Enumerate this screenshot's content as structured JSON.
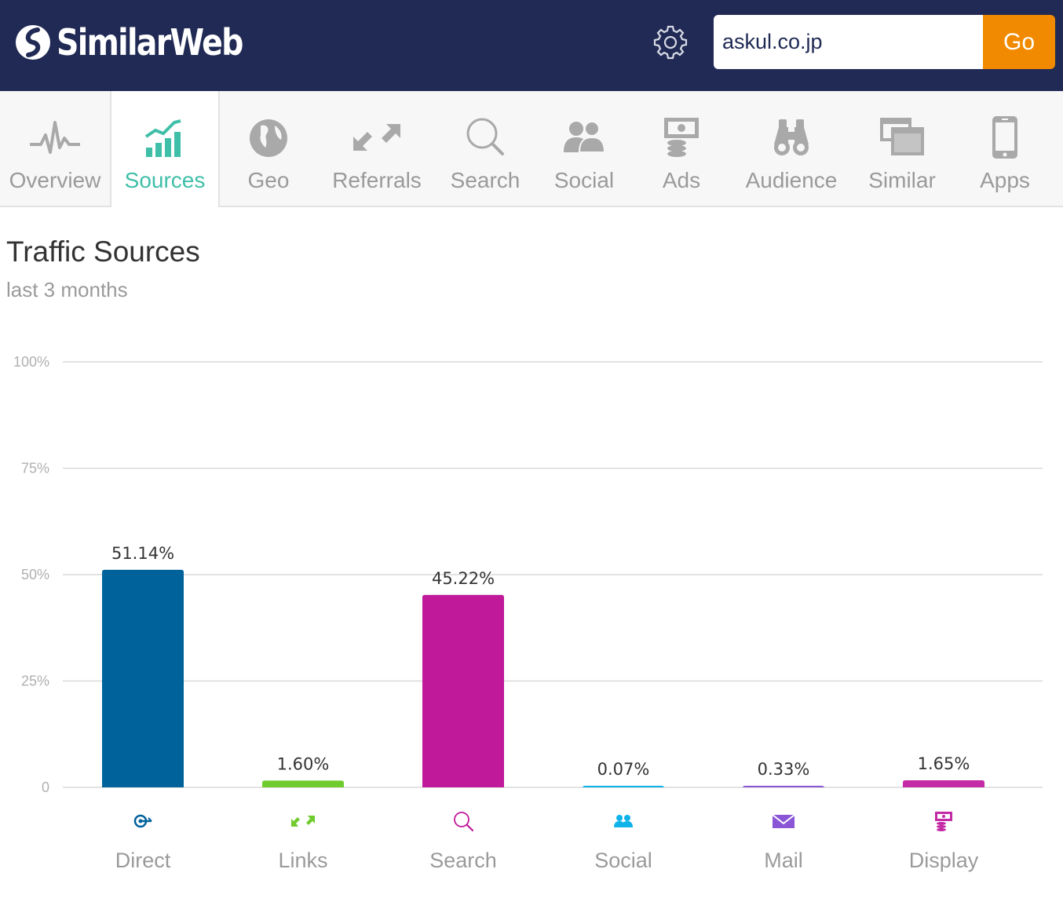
{
  "header": {
    "logo_text": "SimilarWeb",
    "settings_icon": "gear-icon",
    "search_value": "askul.co.jp",
    "go_label": "Go"
  },
  "tabs": [
    {
      "label": "Overview",
      "icon": "pulse-icon",
      "active": false
    },
    {
      "label": "Sources",
      "icon": "growth-chart-icon",
      "active": true
    },
    {
      "label": "Geo",
      "icon": "globe-icon",
      "active": false
    },
    {
      "label": "Referrals",
      "icon": "arrows-icon",
      "active": false
    },
    {
      "label": "Search",
      "icon": "magnifier-icon",
      "active": false
    },
    {
      "label": "Social",
      "icon": "people-icon",
      "active": false
    },
    {
      "label": "Ads",
      "icon": "money-stack-icon",
      "active": false
    },
    {
      "label": "Audience",
      "icon": "binoculars-icon",
      "active": false
    },
    {
      "label": "Similar",
      "icon": "windows-icon",
      "active": false
    },
    {
      "label": "Apps",
      "icon": "phone-icon",
      "active": false
    }
  ],
  "page": {
    "title": "Traffic Sources",
    "subtitle": "last 3 months"
  },
  "chart_data": {
    "type": "bar",
    "title": "Traffic Sources",
    "subtitle": "last 3 months",
    "categories": [
      "Direct",
      "Links",
      "Search",
      "Social",
      "Mail",
      "Display"
    ],
    "values": [
      51.14,
      1.6,
      45.22,
      0.07,
      0.33,
      1.65
    ],
    "value_labels": [
      "51.14%",
      "1.60%",
      "45.22%",
      "0.07%",
      "0.33%",
      "1.65%"
    ],
    "colors": [
      "#00629b",
      "#70cc2e",
      "#c0199a",
      "#0fb3ea",
      "#8a56d5",
      "#c42aa5"
    ],
    "category_icons": [
      "target-arrow-icon",
      "link-arrows-icon",
      "magnifier-icon",
      "people-icon",
      "envelope-icon",
      "money-stack-icon"
    ],
    "ylim": [
      0,
      100
    ],
    "yticks": [
      0,
      25,
      50,
      75,
      100
    ],
    "ytick_labels": [
      "0",
      "25%",
      "50%",
      "75%",
      "100%"
    ],
    "grid": true,
    "xlabel": "",
    "ylabel": ""
  }
}
